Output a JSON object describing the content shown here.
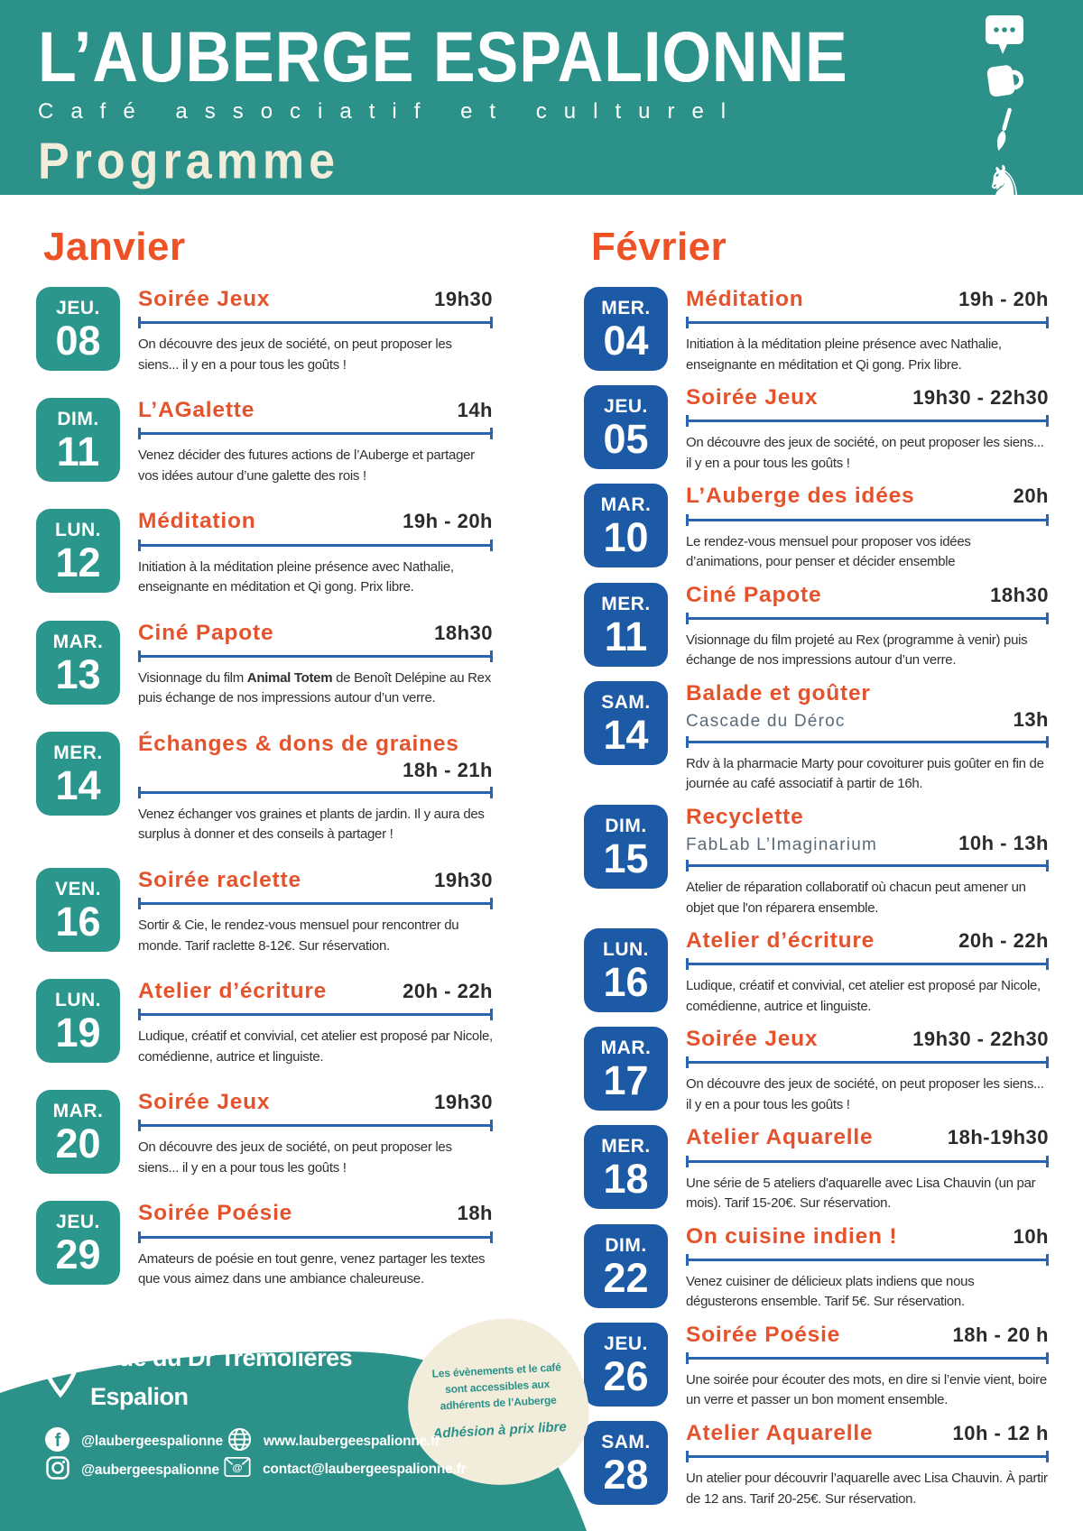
{
  "colors": {
    "teal": "#2b9189",
    "teal_block": "#2b968b",
    "blue_block": "#1d5aa6",
    "orange_heading": "#ee5124",
    "orange_title": "#e4532c",
    "rule_blue": "#2a63b0",
    "cream": "#f2ecda",
    "subtitle_gray": "#5a6a78",
    "text_dark": "#303030"
  },
  "header": {
    "title": "L’AUBERGE ESPALIONNE",
    "subtitle": "Café associatif et culturel",
    "program_label": "Programme",
    "icons": [
      "speech-bubble",
      "coffee-cup",
      "paintbrush",
      "chess-knight"
    ],
    "knight_glyph": "♞"
  },
  "months": [
    {
      "name": "Janvier",
      "accent": "#2b968b",
      "events": [
        {
          "day": "JEU.",
          "date": "08",
          "title": "Soirée Jeux",
          "time": "19h30",
          "desc": [
            {
              "t": "On découvre des jeux de société, on peut proposer les siens... il y en a pour tous les goûts !"
            }
          ]
        },
        {
          "day": "DIM.",
          "date": "11",
          "title": "L’AGalette",
          "time": "14h",
          "desc": [
            {
              "t": "Venez décider des futures actions de l’Auberge et partager vos idées autour d’une galette des rois !"
            }
          ]
        },
        {
          "day": "LUN.",
          "date": "12",
          "title": "Méditation",
          "time": "19h - 20h",
          "desc": [
            {
              "t": "Initiation à la méditation pleine présence avec Nathalie, enseignante en méditation et Qi gong. Prix libre."
            }
          ]
        },
        {
          "day": "MAR.",
          "date": "13",
          "title": "Ciné Papote",
          "time": "18h30",
          "desc": [
            {
              "t": "Visionnage du film "
            },
            {
              "t": "Animal Totem",
              "b": true
            },
            {
              "t": " de Benoît Delépine au Rex puis échange de nos impressions autour d’un verre."
            }
          ]
        },
        {
          "day": "MER.",
          "date": "14",
          "title": "Échanges & dons de graines",
          "time": "18h - 21h",
          "time_below": true,
          "desc": [
            {
              "t": "Venez échanger vos graines et plants de jardin. Il y aura des surplus à donner et des conseils à partager !"
            }
          ]
        },
        {
          "day": "VEN.",
          "date": "16",
          "title": "Soirée raclette",
          "time": "19h30",
          "desc": [
            {
              "t": "Sortir & Cie, le rendez-vous mensuel pour rencontrer du monde. Tarif raclette 8-12€. Sur réservation."
            }
          ]
        },
        {
          "day": "LUN.",
          "date": "19",
          "title": "Atelier d’écriture",
          "time": "20h - 22h",
          "desc": [
            {
              "t": "Ludique, créatif et convivial, cet atelier est proposé par Nicole, comédienne, autrice et linguiste."
            }
          ]
        },
        {
          "day": "MAR.",
          "date": "20",
          "title": "Soirée Jeux",
          "time": "19h30",
          "desc": [
            {
              "t": "On découvre des jeux de société, on peut proposer les siens... il y en a pour tous les goûts !"
            }
          ]
        },
        {
          "day": "JEU.",
          "date": "29",
          "title": "Soirée Poésie",
          "time": "18h",
          "desc": [
            {
              "t": "Amateurs de poésie en tout genre, venez partager les textes que vous aimez dans une ambiance chaleureuse."
            }
          ]
        }
      ]
    },
    {
      "name": "Février",
      "accent": "#1d5aa6",
      "events": [
        {
          "day": "MER.",
          "date": "04",
          "title": "Méditation",
          "time": "19h - 20h",
          "desc": [
            {
              "t": "Initiation à la méditation pleine présence avec Nathalie, enseignante en méditation et Qi gong. Prix libre."
            }
          ]
        },
        {
          "day": "JEU.",
          "date": "05",
          "title": "Soirée Jeux",
          "time": "19h30 - 22h30",
          "desc": [
            {
              "t": "On découvre des jeux de société, on peut proposer les siens... il y en a pour tous les goûts !"
            }
          ]
        },
        {
          "day": "MAR.",
          "date": "10",
          "title": "L’Auberge des idées",
          "time": "20h",
          "desc": [
            {
              "t": "Le rendez-vous mensuel pour proposer vos idées d’animations, pour penser et décider ensemble"
            }
          ]
        },
        {
          "day": "MER.",
          "date": "11",
          "title": "Ciné Papote",
          "time": "18h30",
          "desc": [
            {
              "t": "Visionnage du film projeté au Rex (programme à venir) puis échange de nos impressions autour d’un verre."
            }
          ]
        },
        {
          "day": "SAM.",
          "date": "14",
          "title": "Balade et goûter",
          "subtitle": "Cascade du Déroc",
          "time": "13h",
          "desc": [
            {
              "t": "Rdv à la pharmacie Marty pour covoiturer puis goûter en fin de journée au café associatif à partir de 16h."
            }
          ]
        },
        {
          "day": "DIM.",
          "date": "15",
          "title": "Recyclette",
          "subtitle": "FabLab L’Imaginarium",
          "time": "10h - 13h",
          "desc": [
            {
              "t": "Atelier de réparation collaboratif où chacun peut amener un objet que l'on réparera ensemble."
            }
          ]
        },
        {
          "day": "LUN.",
          "date": "16",
          "title": "Atelier d’écriture",
          "time": "20h - 22h",
          "desc": [
            {
              "t": "Ludique, créatif et convivial, cet atelier est proposé par Nicole, comédienne, autrice et linguiste."
            }
          ]
        },
        {
          "day": "MAR.",
          "date": "17",
          "title": "Soirée Jeux",
          "time": "19h30 - 22h30",
          "desc": [
            {
              "t": "On découvre des jeux de société, on peut proposer les siens... il y en a pour tous les goûts !"
            }
          ]
        },
        {
          "day": "MER.",
          "date": "18",
          "title": "Atelier Aquarelle",
          "time": "18h-19h30",
          "desc": [
            {
              "t": "Une série de 5 ateliers d'aquarelle avec Lisa Chauvin (un par mois). Tarif 15-20€. Sur réservation."
            }
          ]
        },
        {
          "day": "DIM.",
          "date": "22",
          "title": "On cuisine indien !",
          "time": "10h",
          "desc": [
            {
              "t": "Venez cuisiner de délicieux plats indiens que nous dégusterons ensemble. Tarif 5€. Sur réservation."
            }
          ]
        },
        {
          "day": "JEU.",
          "date": "26",
          "title": "Soirée Poésie",
          "time": "18h - 20 h",
          "desc": [
            {
              "t": "Une soirée pour écouter des mots, en dire si l’envie vient, boire un verre et passer un bon moment ensemble."
            }
          ]
        },
        {
          "day": "SAM.",
          "date": "28",
          "title": "Atelier Aquarelle",
          "time": "10h - 12 h",
          "desc": [
            {
              "t": "Un atelier pour découvrir l’aquarelle avec Lisa Chauvin. À partir de 12 ans. Tarif 20-25€. Sur réservation."
            }
          ]
        }
      ]
    }
  ],
  "footer": {
    "address_line1": "5 rue du Dr Trémolières",
    "address_line2": "Espalion",
    "facebook": "@laubergeespalionne",
    "instagram": "@aubergeespalionne",
    "website": "www.laubergeespalionne.fr",
    "email": "contact@laubergeespalionne.fr"
  },
  "badge": {
    "lines": [
      "Les évènements et le café",
      "sont accessibles aux",
      "adhérents de l’Auberge"
    ],
    "emphasis": "Adhésion à prix libre"
  }
}
